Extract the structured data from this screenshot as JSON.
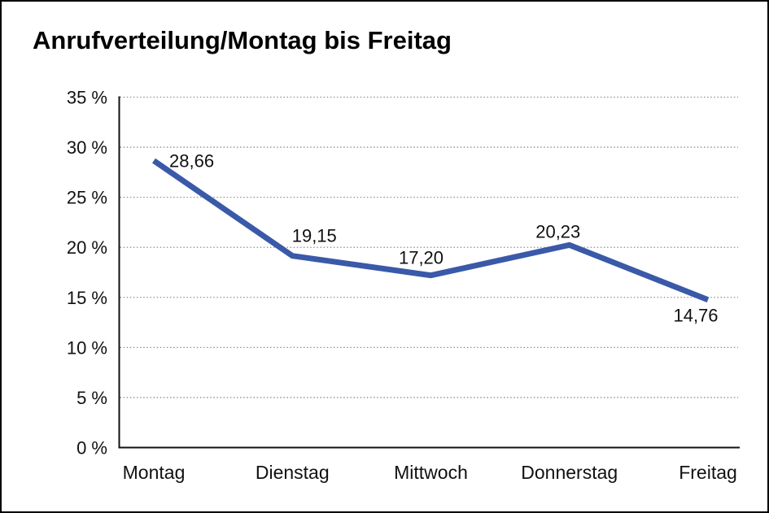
{
  "title": "Anrufverteilung/Montag bis Freitag",
  "chart_data": {
    "type": "line",
    "title": "Anrufverteilung/Montag bis Freitag",
    "categories": [
      "Montag",
      "Dienstag",
      "Mittwoch",
      "Donnerstag",
      "Freitag"
    ],
    "values": [
      28.66,
      19.15,
      17.2,
      20.23,
      14.76
    ],
    "value_labels": [
      "28,66",
      "19,15",
      "17,20",
      "20,23",
      "14,76"
    ],
    "ytick_labels": [
      "0 %",
      "5 %",
      "10 %",
      "15 %",
      "20 %",
      "25 %",
      "30 %",
      "35 %"
    ],
    "ylim": [
      0,
      35
    ],
    "ytick_step": 5,
    "xlabel": "",
    "ylabel": "",
    "legend": "none",
    "grid": "horizontal-dotted",
    "colors": {
      "line": "#3A59A8",
      "gridline": "#8f8f8f",
      "axis": "#111111",
      "text": "#111111",
      "title": "#000000",
      "background": "#ffffff",
      "page_border": "#000000"
    }
  }
}
